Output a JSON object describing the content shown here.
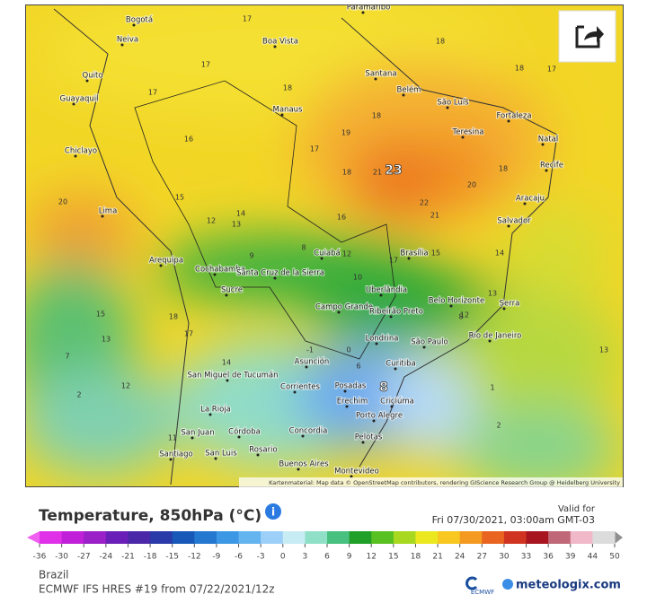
{
  "header": {
    "title": "Temperature, 850hPa (°C)",
    "valid_label": "Valid for",
    "valid_time": "Fri 07/30/2021, 03:00am GMT-03"
  },
  "map": {
    "attribution": "Kartenmaterial: Map data © OpenStreetMap contributors, rendering GIScience Research Group @ Heidelberg University",
    "cities": [
      "Bogotá",
      "Neiva",
      "Quito",
      "Guayaquil",
      "Chiclayo",
      "Lima",
      "Arequipa",
      "Cochabamba",
      "Santa Cruz de la Sierra",
      "Sucre",
      "Boa Vista",
      "Manaus",
      "Paramaribo",
      "Santana",
      "Belém",
      "São Luís",
      "Fortaleza",
      "Teresina",
      "Natal",
      "Recife",
      "Aracaju",
      "Salvador",
      "Cuiabá",
      "Brasília",
      "Uberlândia",
      "Campo Grande",
      "Belo Horizonte",
      "Ribeirão Preto",
      "Serra",
      "Rio de Janeiro",
      "São Paulo",
      "Londrina",
      "Curitiba",
      "Asunción",
      "San Miguel de Tucumán",
      "Corrientes",
      "Posadas",
      "Erechim",
      "Criciúma",
      "La Rioja",
      "Porto Alegre",
      "San Juan",
      "Córdoba",
      "Concordia",
      "Pelotas",
      "Rosario",
      "Santiago",
      "San Luis",
      "Buenos Aires",
      "Montevideo"
    ],
    "temperatures": [
      17,
      18,
      18,
      17,
      17,
      18,
      17,
      18,
      19,
      16,
      17,
      18,
      21,
      23,
      18,
      20,
      15,
      20,
      22,
      21,
      16,
      14,
      12,
      13,
      14,
      17,
      15,
      12,
      9,
      8,
      10,
      15,
      18,
      13,
      13,
      12,
      8,
      17,
      13,
      14,
      12,
      8,
      6,
      1,
      2,
      2,
      -1,
      0,
      7,
      11
    ]
  },
  "colorbar": {
    "ticks": [
      -36,
      -30,
      -27,
      -24,
      -21,
      -18,
      -15,
      -12,
      -9,
      -6,
      -3,
      0,
      3,
      6,
      9,
      12,
      15,
      18,
      21,
      24,
      27,
      30,
      33,
      36,
      39,
      44,
      50
    ],
    "colors": [
      "#e030e8",
      "#c020d8",
      "#9a20c8",
      "#6a20b8",
      "#4a28a8",
      "#2a3aa8",
      "#1858b8",
      "#2478d0",
      "#3c98e4",
      "#64b4f0",
      "#9cd0f8",
      "#c8ecf4",
      "#90e0c8",
      "#48c080",
      "#20a028",
      "#58c020",
      "#a8d820",
      "#ece820",
      "#f8c820",
      "#f49a20",
      "#e86420",
      "#d03420",
      "#a81420",
      "#c06878",
      "#f0b8c8",
      "#dcdcdc"
    ],
    "end_low": "#f060f0",
    "end_high": "#909090"
  },
  "footer": {
    "region": "Brazil",
    "model": "ECMWF IFS HRES #19 from 07/22/2021/12z",
    "ecmwf": "ECMWF",
    "brand": "meteologix.com"
  }
}
